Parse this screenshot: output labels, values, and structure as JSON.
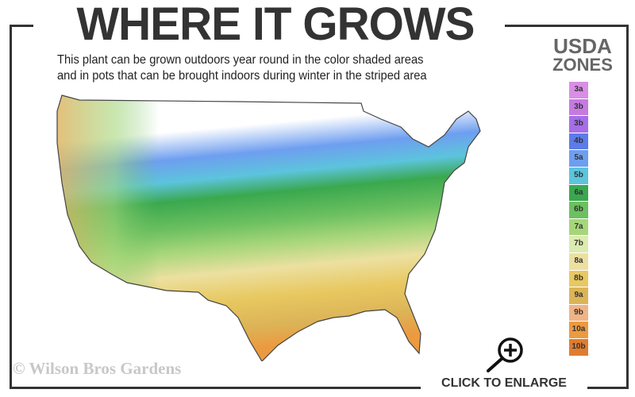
{
  "header": {
    "title": "WHERE IT GROWS",
    "subtitle_line1": "This plant can be grown outdoors year round in the color shaded areas",
    "subtitle_line2": "and in pots that can be brought indoors during winter in the striped area"
  },
  "legend": {
    "title_line1": "USDA",
    "title_line2": "ZONES",
    "zones": [
      {
        "label": "3a",
        "color": "#d98ee6"
      },
      {
        "label": "3b",
        "color": "#c57ae0"
      },
      {
        "label": "3b",
        "color": "#a56ee8"
      },
      {
        "label": "4b",
        "color": "#5c7be8"
      },
      {
        "label": "5a",
        "color": "#6e9ef0"
      },
      {
        "label": "5b",
        "color": "#5cc4dc"
      },
      {
        "label": "6a",
        "color": "#3aa84e"
      },
      {
        "label": "6b",
        "color": "#6cc060"
      },
      {
        "label": "7a",
        "color": "#a6d67a"
      },
      {
        "label": "7b",
        "color": "#dcebb0"
      },
      {
        "label": "8a",
        "color": "#ece0a0"
      },
      {
        "label": "8b",
        "color": "#e8c860"
      },
      {
        "label": "9a",
        "color": "#dcb458"
      },
      {
        "label": "9b",
        "color": "#f0b484"
      },
      {
        "label": "10a",
        "color": "#ec9a40"
      },
      {
        "label": "10b",
        "color": "#e07c30"
      }
    ]
  },
  "map": {
    "region": "Continental United States",
    "icon": "usa-zone-map"
  },
  "footer": {
    "copyright": "© Wilson Bros Gardens",
    "enlarge_label": "CLICK TO ENLARGE",
    "enlarge_icon": "zoom-in-icon"
  }
}
